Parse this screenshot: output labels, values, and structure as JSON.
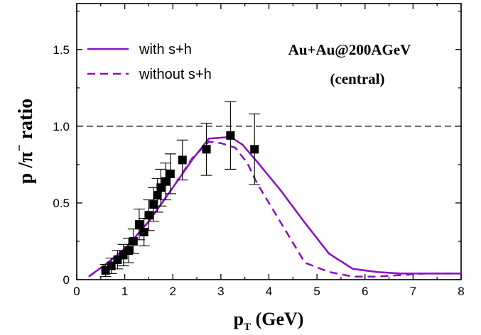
{
  "chart_data": {
    "type": "line",
    "xlabel": {
      "main": "p",
      "sub": "T",
      "rest": " (GeV)"
    },
    "ylabel": {
      "main": "p /π",
      "sup": "−",
      "rest": " ratio"
    },
    "xlim": [
      0,
      8
    ],
    "ylim": [
      0,
      1.8
    ],
    "xticks": [
      0,
      1,
      2,
      3,
      4,
      5,
      6,
      7,
      8
    ],
    "xtick_labels": [
      "0",
      "1",
      "2",
      "3",
      "4",
      "5",
      "6",
      "7",
      "8"
    ],
    "yticks": [
      0,
      0.5,
      1.0,
      1.5
    ],
    "ytick_labels": [
      "0",
      "0.5",
      "1.0",
      "1.5"
    ],
    "reference_line": {
      "y": 1.0,
      "style": "dashed"
    },
    "color": "#8a0ec8",
    "series": [
      {
        "name": "with s+h",
        "style": "solid",
        "x": [
          0.25,
          0.6,
          1.0,
          1.5,
          2.0,
          2.4,
          2.75,
          3.2,
          3.45,
          3.75,
          4.25,
          4.75,
          5.25,
          5.75,
          6.25,
          6.75,
          7.25,
          8.0
        ],
        "y": [
          0.02,
          0.1,
          0.2,
          0.38,
          0.6,
          0.78,
          0.92,
          0.93,
          0.88,
          0.77,
          0.58,
          0.37,
          0.17,
          0.07,
          0.05,
          0.04,
          0.04,
          0.04
        ]
      },
      {
        "name": "without s+h",
        "style": "dashed",
        "x": [
          0.25,
          0.6,
          1.0,
          1.5,
          2.0,
          2.4,
          2.75,
          3.0,
          3.3,
          3.55,
          3.75,
          4.25,
          4.75,
          5.25,
          5.75,
          6.25,
          6.75,
          7.25,
          8.0
        ],
        "y": [
          0.02,
          0.1,
          0.2,
          0.38,
          0.6,
          0.79,
          0.9,
          0.89,
          0.86,
          0.76,
          0.63,
          0.37,
          0.11,
          0.05,
          0.02,
          0.02,
          0.03,
          0.04,
          0.04
        ]
      }
    ],
    "points": {
      "x": [
        0.6,
        0.72,
        0.85,
        0.97,
        1.08,
        1.18,
        1.3,
        1.4,
        1.5,
        1.6,
        1.68,
        1.75,
        1.85,
        1.95,
        2.2,
        2.7,
        3.2,
        3.7
      ],
      "y": [
        0.06,
        0.09,
        0.13,
        0.16,
        0.19,
        0.25,
        0.36,
        0.31,
        0.42,
        0.49,
        0.55,
        0.6,
        0.64,
        0.69,
        0.78,
        0.85,
        0.94,
        0.85
      ],
      "err": [
        0.04,
        0.05,
        0.06,
        0.07,
        0.08,
        0.08,
        0.1,
        0.09,
        0.1,
        0.11,
        0.11,
        0.12,
        0.12,
        0.13,
        0.13,
        0.17,
        0.22,
        0.23
      ]
    },
    "legend": {
      "placement": "top-left",
      "entries": [
        "with s+h",
        "without s+h"
      ]
    },
    "annotations": [
      "Au+Au@200AGeV",
      "(central)"
    ]
  }
}
